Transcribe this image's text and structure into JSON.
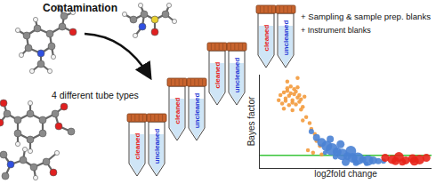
{
  "diagram": {
    "title": "Contamination",
    "tube_types_label": "4 different tube types",
    "tube_pairs": 4,
    "tube_labels": [
      "cleaned",
      "uncleaned"
    ],
    "tube_label_colors": [
      "#e8231a",
      "#2a3cd6"
    ],
    "blanks": [
      "+ Sampling & sample prep. blanks",
      "+ Instrument blanks"
    ]
  },
  "chart_data": {
    "type": "scatter",
    "x_label": "log2fold change",
    "y_label": "Bayes factor",
    "xlim": [
      0,
      10
    ],
    "ylim": [
      0,
      11
    ],
    "xticks": [],
    "yticks": [],
    "tick_labels": false,
    "grid": false,
    "reference_line": {
      "y": 1.5,
      "color": "#39c43a"
    },
    "series": [
      {
        "color": "#f39a3c",
        "x": [
          1.2,
          1.4,
          1.5,
          1.6,
          1.7,
          1.8,
          1.9,
          2.0,
          2.1,
          2.2,
          2.3,
          2.4,
          1.3,
          1.5,
          1.7,
          1.9,
          2.1,
          2.3,
          2.5,
          1.6,
          1.8,
          2.0,
          2.2,
          1.4,
          2.6,
          1.1,
          1.9,
          2.4,
          2.7,
          2.9,
          3.0,
          3.2,
          3.3,
          2.5,
          3.5,
          2.8,
          3.1,
          1.6,
          2.2,
          3.6
        ],
        "values": [
          8.6,
          8.9,
          8.2,
          9.1,
          8.5,
          8.8,
          8.0,
          8.7,
          9.0,
          8.3,
          8.6,
          8.1,
          7.6,
          7.9,
          7.4,
          7.7,
          7.5,
          7.8,
          7.2,
          9.4,
          9.6,
          9.3,
          9.5,
          7.0,
          8.4,
          8.0,
          6.8,
          6.9,
          6.0,
          5.3,
          4.6,
          4.0,
          3.2,
          5.6,
          2.6,
          2.1,
          1.8,
          10.2,
          10.6,
          1.6
        ]
      },
      {
        "color": "#4a82d4",
        "x": [
          3.0,
          3.3,
          3.6,
          3.9,
          4.2,
          4.5,
          4.8,
          5.1,
          5.4,
          5.7,
          6.0,
          6.3,
          6.6,
          6.9,
          7.2,
          3.8,
          4.4,
          5.0,
          5.6,
          6.2,
          4.1,
          4.7,
          5.3
        ],
        "values": [
          4.3,
          3.6,
          3.0,
          2.6,
          2.2,
          1.9,
          1.6,
          1.4,
          1.2,
          1.1,
          1.0,
          0.9,
          0.9,
          0.8,
          0.8,
          1.8,
          1.3,
          0.7,
          0.6,
          0.5,
          3.4,
          2.8,
          2.0
        ],
        "sizes": [
          6,
          8,
          10,
          12,
          14,
          10,
          13,
          9,
          11,
          14,
          8,
          12,
          9,
          7,
          6,
          5,
          6,
          9,
          7,
          5,
          8,
          9,
          12
        ]
      },
      {
        "color": "#e8231a",
        "x": [
          7.3,
          7.7,
          8.1,
          8.5,
          8.9,
          9.3,
          9.7,
          8.3,
          9.0,
          7.9
        ],
        "values": [
          1.2,
          1.0,
          1.3,
          0.9,
          1.1,
          1.0,
          1.2,
          0.7,
          0.8,
          0.8
        ],
        "sizes": [
          9,
          10,
          11,
          9,
          10,
          11,
          9,
          8,
          10,
          9
        ]
      }
    ]
  }
}
